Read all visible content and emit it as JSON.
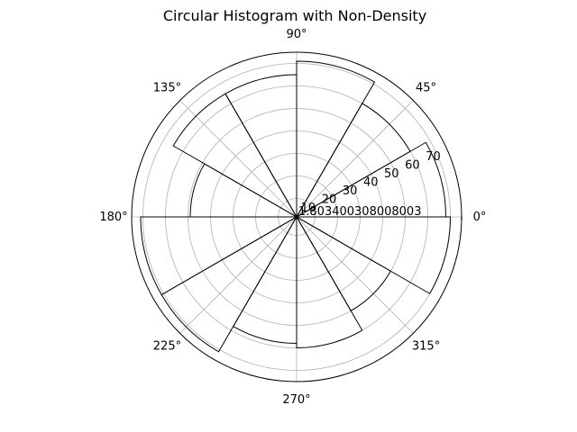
{
  "chart_data": {
    "type": "polar-histogram",
    "title": "Circular Histogram with Non-Density",
    "theta_ticks": [
      "0°",
      "45°",
      "90°",
      "135°",
      "180°",
      "225°",
      "270°",
      "315°"
    ],
    "r_ticks": [
      "1.803400308008003",
      "10",
      "20",
      "30",
      "40",
      "50",
      "60",
      "70"
    ],
    "r_tick_values": [
      1.803400308008003,
      10,
      20,
      30,
      40,
      50,
      60,
      70
    ],
    "r_lim": [
      1.803400308008003,
      75
    ],
    "grid": true,
    "bins": [
      {
        "start_deg": 0,
        "end_deg": 30,
        "value": 68
      },
      {
        "start_deg": 30,
        "end_deg": 60,
        "value": 60
      },
      {
        "start_deg": 60,
        "end_deg": 90,
        "value": 71
      },
      {
        "start_deg": 90,
        "end_deg": 120,
        "value": 65
      },
      {
        "start_deg": 120,
        "end_deg": 150,
        "value": 65
      },
      {
        "start_deg": 150,
        "end_deg": 180,
        "value": 49
      },
      {
        "start_deg": 180,
        "end_deg": 210,
        "value": 71
      },
      {
        "start_deg": 210,
        "end_deg": 240,
        "value": 71
      },
      {
        "start_deg": 240,
        "end_deg": 270,
        "value": 58
      },
      {
        "start_deg": 270,
        "end_deg": 300,
        "value": 60
      },
      {
        "start_deg": 300,
        "end_deg": 330,
        "value": 50
      },
      {
        "start_deg": 330,
        "end_deg": 360,
        "value": 70
      }
    ],
    "line_series": {
      "theta_deg": [
        -1,
        0
      ],
      "r": [
        75,
        75
      ],
      "color": "#1f77b4"
    },
    "colors": {
      "bar_edge": "#000000",
      "grid": "#b0b0b0",
      "line": "#1f77b4"
    }
  }
}
